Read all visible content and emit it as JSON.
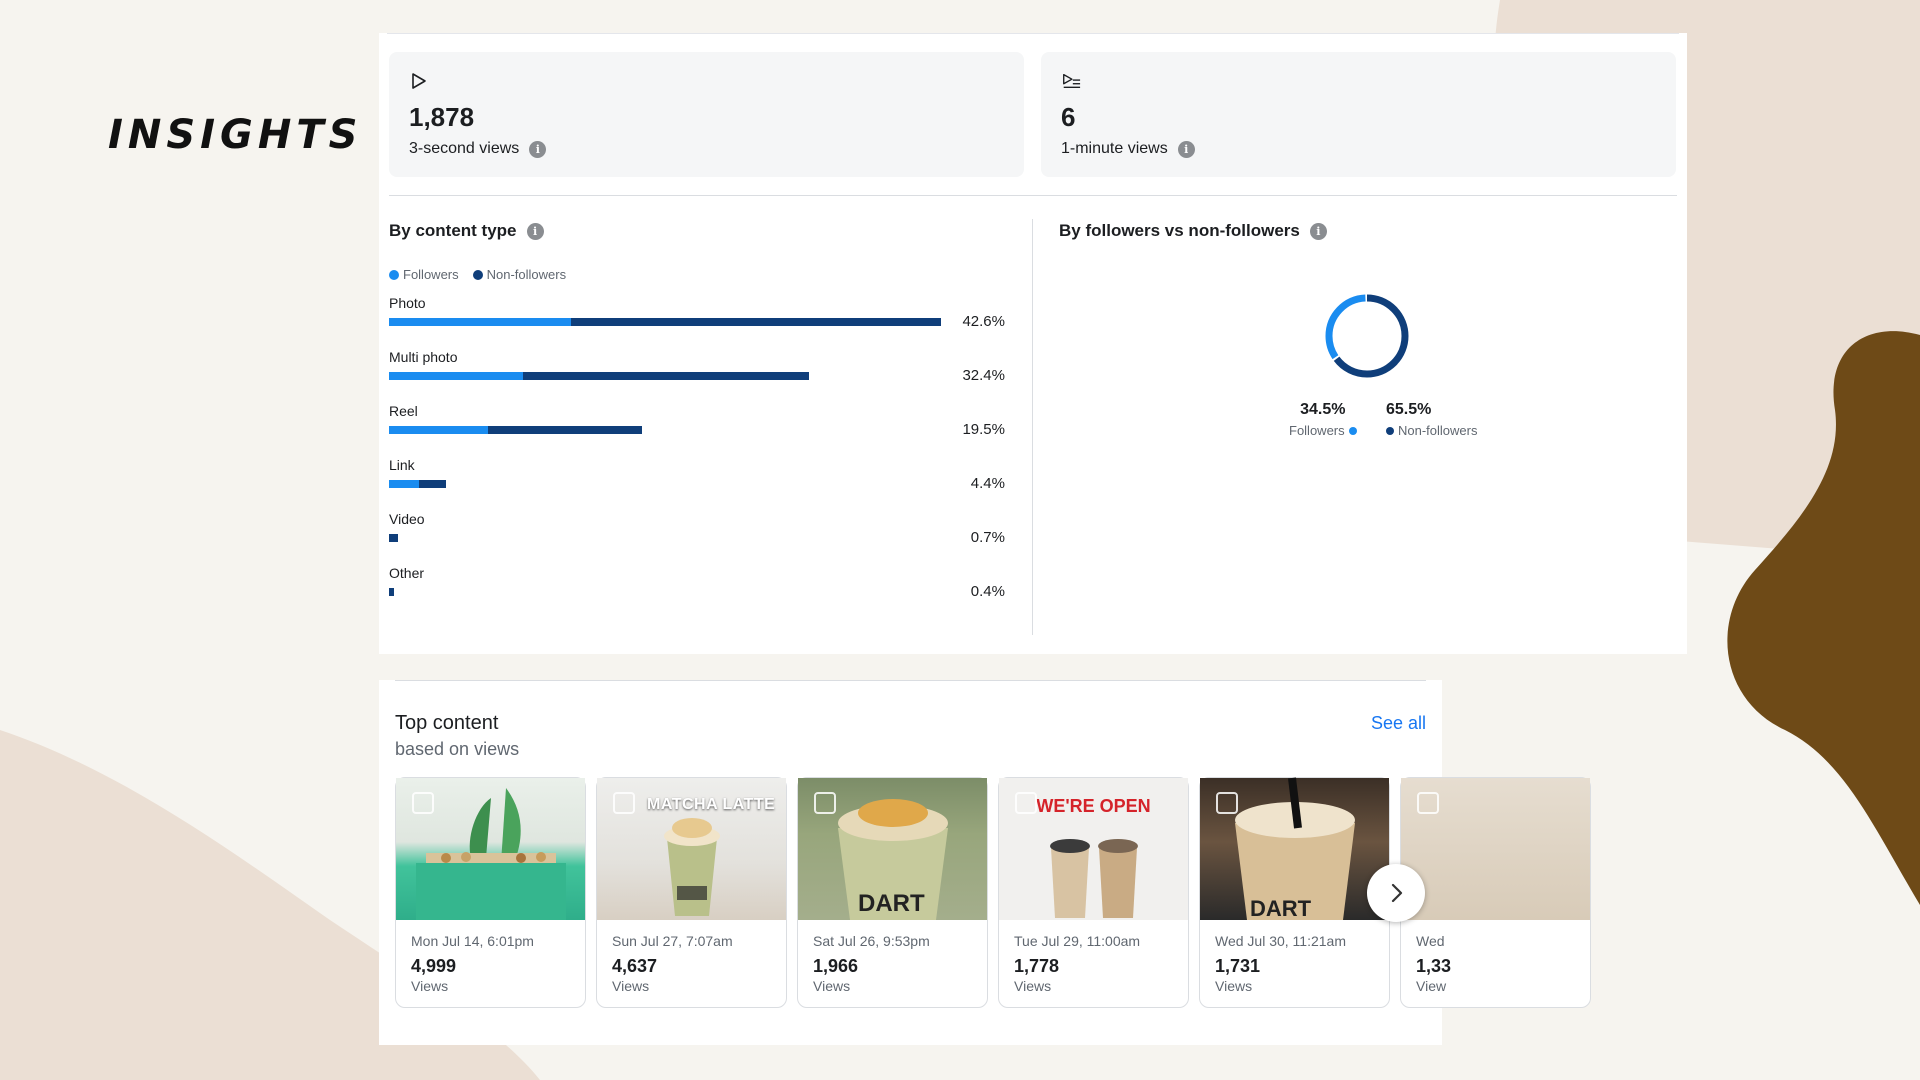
{
  "slide": {
    "title": "INSIGHTS"
  },
  "metrics": [
    {
      "icon": "play-icon",
      "value": "1,878",
      "label": "3-second views"
    },
    {
      "icon": "play-list-icon",
      "value": "6",
      "label": "1-minute views"
    }
  ],
  "content_type": {
    "title": "By content type",
    "legend": {
      "followers": "Followers",
      "non_followers": "Non-followers"
    },
    "rows": [
      {
        "label": "Photo",
        "pct": "42.6%",
        "total": 42.6,
        "followers_share": 0.33
      },
      {
        "label": "Multi photo",
        "pct": "32.4%",
        "total": 32.4,
        "followers_share": 0.32
      },
      {
        "label": "Reel",
        "pct": "19.5%",
        "total": 19.5,
        "followers_share": 0.39
      },
      {
        "label": "Link",
        "pct": "4.4%",
        "total": 4.4,
        "followers_share": 0.53
      },
      {
        "label": "Video",
        "pct": "0.7%",
        "total": 0.7,
        "followers_share": 0.0
      },
      {
        "label": "Other",
        "pct": "0.4%",
        "total": 0.4,
        "followers_share": 0.0
      }
    ]
  },
  "followers_split": {
    "title": "By followers vs non-followers",
    "followers_pct": "34.5%",
    "followers_label": "Followers",
    "non_followers_pct": "65.5%",
    "non_followers_label": "Non-followers",
    "followers_value": 34.5,
    "non_followers_value": 65.5
  },
  "top_content": {
    "title": "Top content",
    "subtitle": "based on views",
    "see_all": "See all",
    "items": [
      {
        "date": "Mon Jul 14, 6:01pm",
        "views": "4,999",
        "views_label": "Views",
        "thumb_text": ""
      },
      {
        "date": "Sun Jul 27, 7:07am",
        "views": "4,637",
        "views_label": "Views",
        "thumb_text": "MATCHA LATTE"
      },
      {
        "date": "Sat Jul 26, 9:53pm",
        "views": "1,966",
        "views_label": "Views",
        "thumb_text": "DART"
      },
      {
        "date": "Tue Jul 29, 11:00am",
        "views": "1,778",
        "views_label": "Views",
        "thumb_text": "WE'RE OPEN"
      },
      {
        "date": "Wed Jul 30, 11:21am",
        "views": "1,731",
        "views_label": "Views",
        "thumb_text": "DART"
      },
      {
        "date": "Wed",
        "views": "1,33",
        "views_label": "View",
        "thumb_text": ""
      }
    ]
  },
  "colors": {
    "followers": "#1a8cf0",
    "non_followers": "#0f3e7a",
    "accent_link": "#1877f2",
    "bg_blob_dark": "#6e4a17",
    "bg_blob_light": "#ebdfd4"
  }
}
